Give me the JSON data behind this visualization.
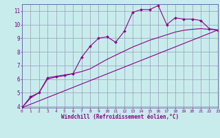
{
  "xlabel": "Windchill (Refroidissement éolien,°C)",
  "xlim": [
    0,
    23
  ],
  "ylim": [
    3.9,
    11.5
  ],
  "yticks": [
    4,
    5,
    6,
    7,
    8,
    9,
    10,
    11
  ],
  "xticks": [
    0,
    1,
    2,
    3,
    4,
    5,
    6,
    7,
    8,
    9,
    10,
    11,
    12,
    13,
    14,
    15,
    16,
    17,
    18,
    19,
    20,
    21,
    22,
    23
  ],
  "bg_color": "#c8ecec",
  "grid_color": "#9999bb",
  "line_color": "#880088",
  "spine_color": "#6666aa",
  "line1_x": [
    0,
    1,
    2,
    3,
    4,
    5,
    6,
    7,
    8,
    9,
    10,
    11,
    12,
    13,
    14,
    15,
    16,
    17,
    18,
    19,
    20,
    21,
    22,
    23
  ],
  "line1_y": [
    3.9,
    4.7,
    5.0,
    6.1,
    6.2,
    6.3,
    6.4,
    7.6,
    8.4,
    9.0,
    9.1,
    8.7,
    9.5,
    10.9,
    11.1,
    11.1,
    11.4,
    10.0,
    10.5,
    10.4,
    10.4,
    10.3,
    9.7,
    9.6
  ],
  "line2_x": [
    0,
    1,
    2,
    3,
    4,
    5,
    6,
    7,
    8,
    9,
    10,
    11,
    12,
    13,
    14,
    15,
    16,
    17,
    18,
    19,
    20,
    21,
    22,
    23
  ],
  "line2_y": [
    3.9,
    4.6,
    5.0,
    6.0,
    6.15,
    6.25,
    6.4,
    6.55,
    6.75,
    7.1,
    7.45,
    7.75,
    8.05,
    8.35,
    8.6,
    8.85,
    9.05,
    9.25,
    9.45,
    9.58,
    9.65,
    9.7,
    9.65,
    9.6
  ],
  "line3_x": [
    0,
    23
  ],
  "line3_y": [
    3.9,
    9.6
  ]
}
